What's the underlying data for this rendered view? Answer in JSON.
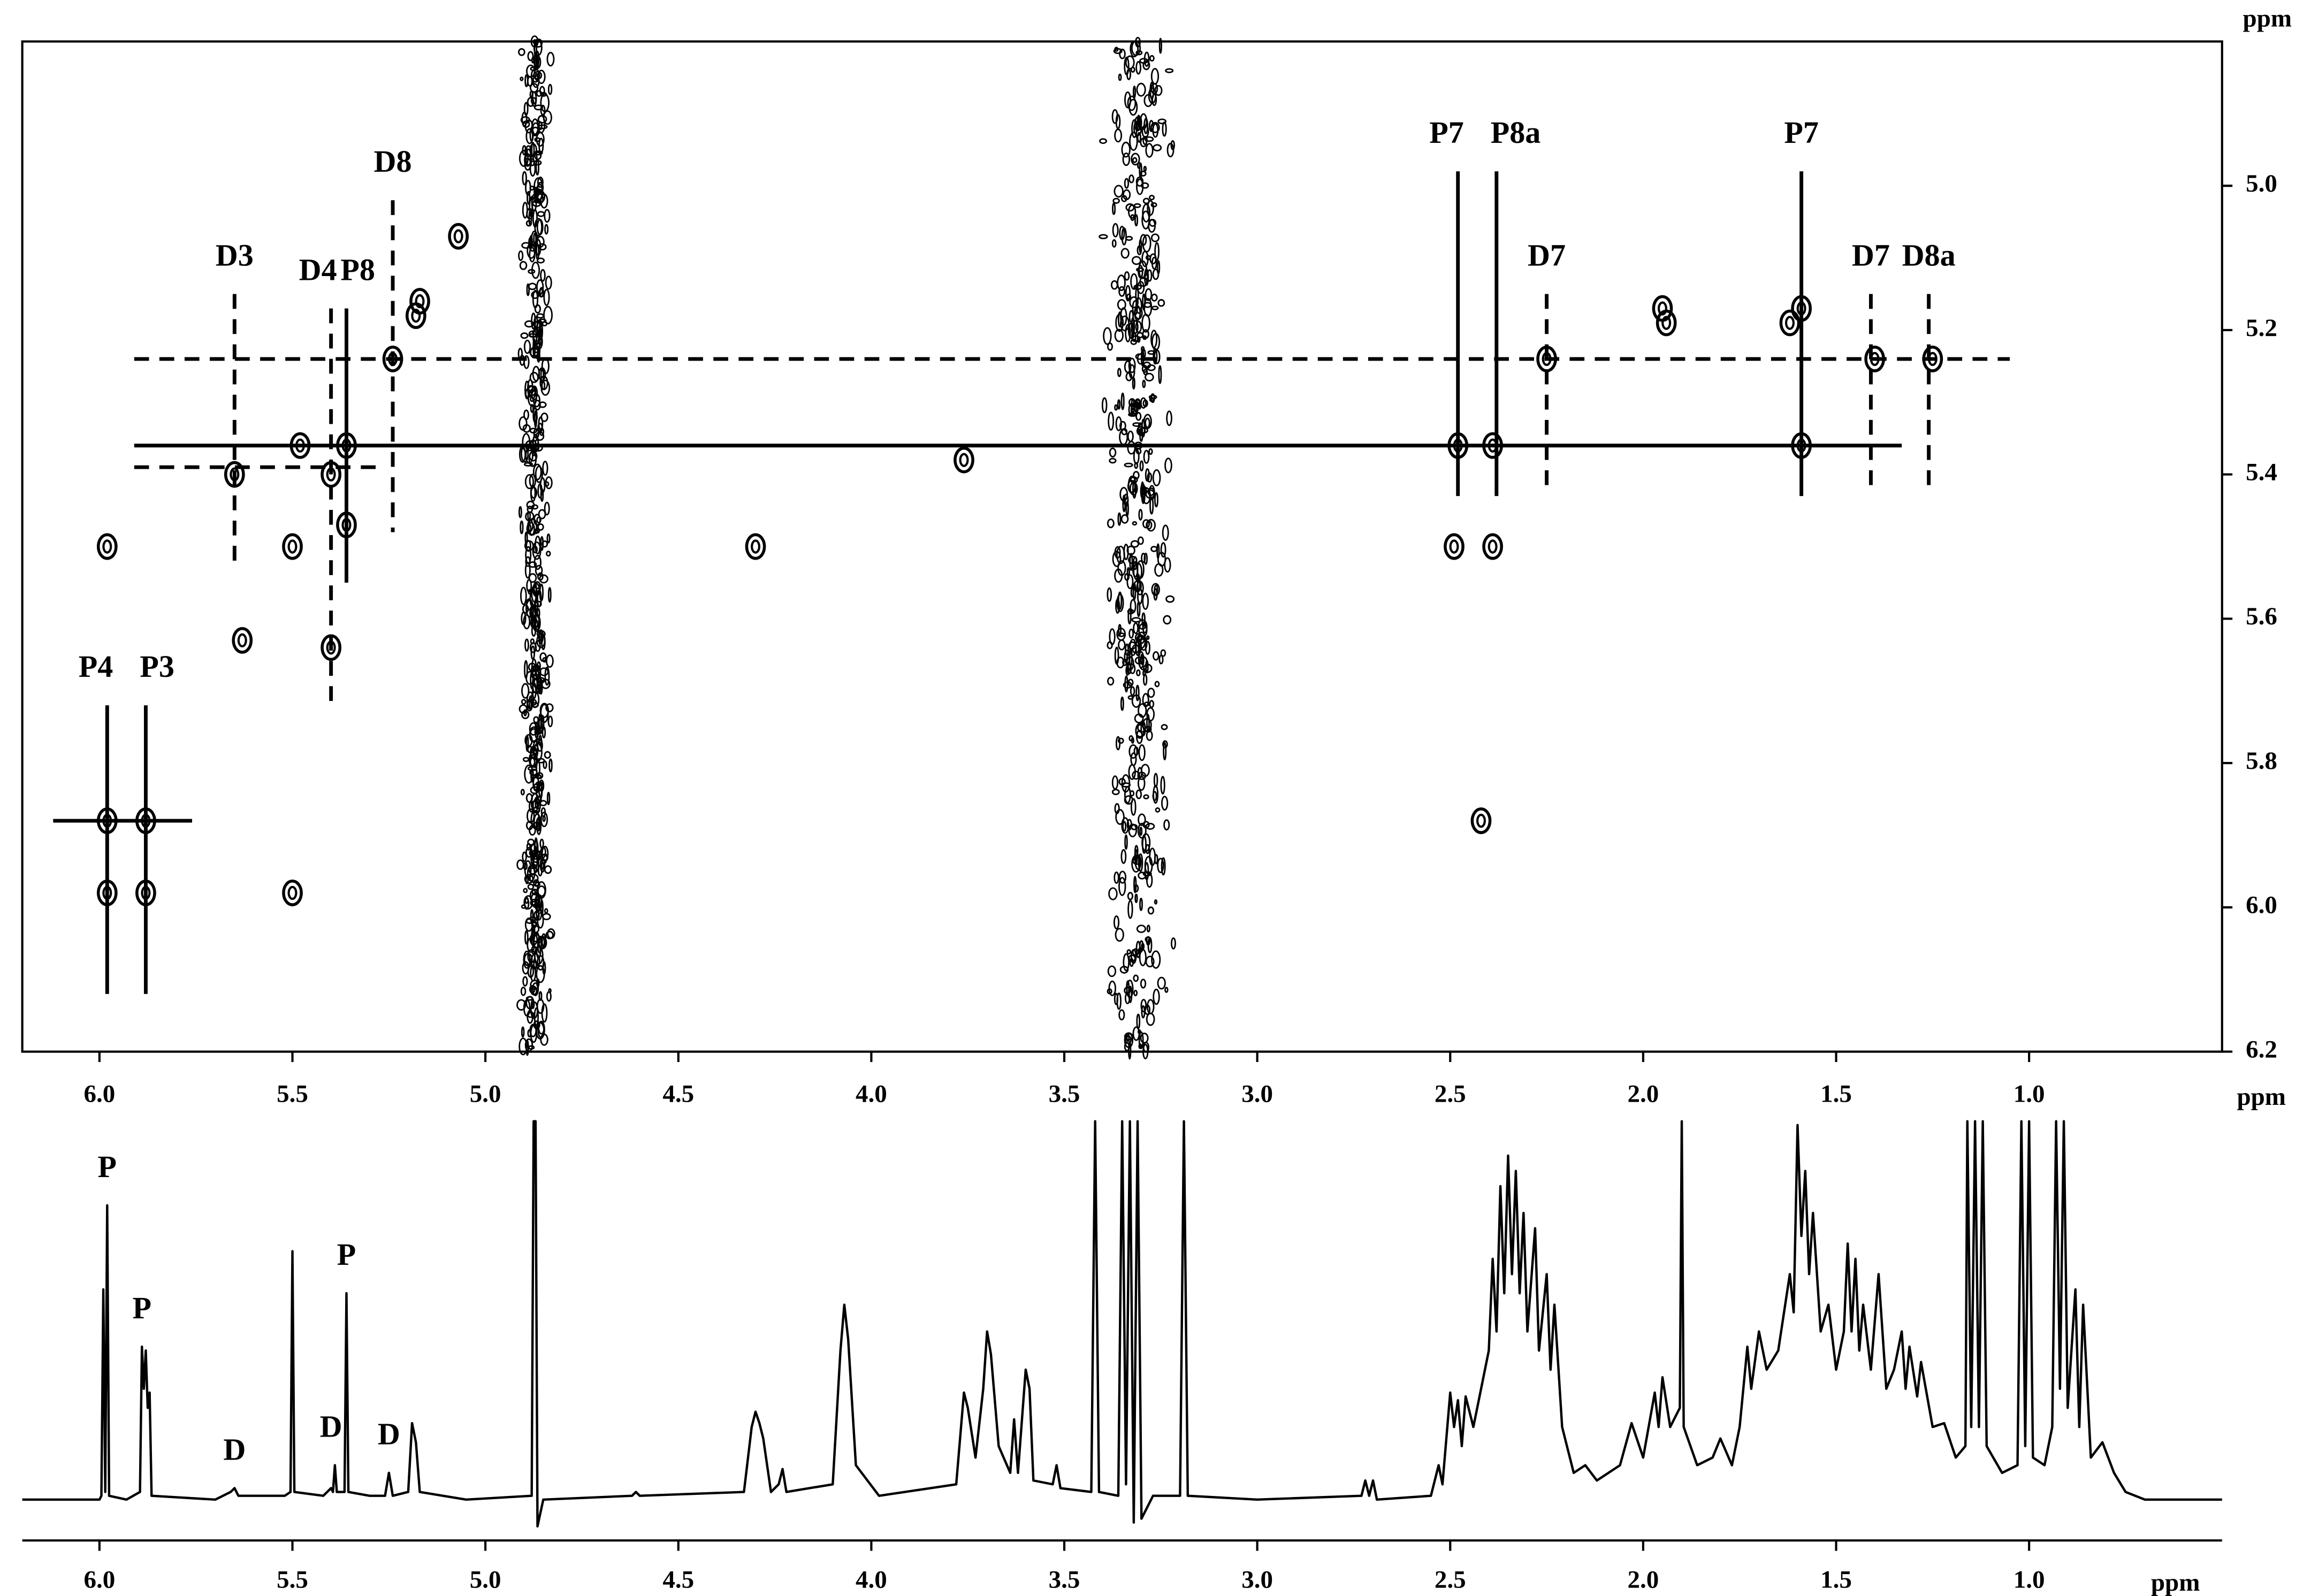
{
  "chart_data": [
    {
      "type": "contour",
      "xlabel": "ppm",
      "ylabel": "ppm",
      "xlim": [
        6.2,
        0.5
      ],
      "ylim": [
        4.8,
        6.2
      ],
      "xticks": [
        {
          "value": 6,
          "label": "6.0"
        },
        5.5,
        {
          "value": 5,
          "label": "5.0"
        },
        4.5,
        {
          "value": 4,
          "label": "4.0"
        },
        3.5,
        {
          "value": 3,
          "label": "3.0"
        },
        2.5,
        {
          "value": 2,
          "label": "2.0"
        },
        1.5,
        {
          "value": 1,
          "label": "1.0"
        }
      ],
      "yticks": [
        {
          "value": 5,
          "label": "5.0"
        },
        5.2,
        5.4,
        5.6,
        5.8,
        {
          "value": 6,
          "label": "6.0"
        },
        6.2
      ],
      "color": "#000000",
      "cross_peaks": {
        "x": [
          5.98,
          5.88,
          5.98,
          5.88,
          5.98,
          5.5,
          5.5,
          5.4,
          5.36,
          5.65,
          5.4,
          5.36,
          5.48,
          5.24,
          5.18,
          5.17,
          5.07,
          5.63,
          3.76,
          4.3,
          2.48,
          2.39,
          2.39,
          2.42,
          1.95,
          1.94,
          1.59,
          1.62,
          1.59,
          2.25,
          1.4,
          1.25,
          2.49
        ],
        "y": [
          5.88,
          5.88,
          5.98,
          5.98,
          5.5,
          5.98,
          5.5,
          5.4,
          5.36,
          5.4,
          5.64,
          5.47,
          5.36,
          5.24,
          5.18,
          5.16,
          5.07,
          5.63,
          5.38,
          5.5,
          5.36,
          5.36,
          5.5,
          5.88,
          5.17,
          5.19,
          5.17,
          5.19,
          5.36,
          5.24,
          5.24,
          5.24,
          5.5
        ]
      },
      "solvent_bands": [
        4.87,
        3.31
      ],
      "guides": [
        {
          "y": 5.36,
          "x1": 5.91,
          "x2": 1.33,
          "style": "solid"
        },
        {
          "y": 5.24,
          "x1": 5.91,
          "x2": 1.05,
          "style": "dashed"
        },
        {
          "y": 5.39,
          "x1": 5.91,
          "x2": 5.27,
          "style": "dashed"
        },
        {
          "y": 5.88,
          "x1": 6.12,
          "x2": 5.76,
          "style": "solid"
        }
      ],
      "annotations": [
        {
          "label": "P7",
          "x": 2.48,
          "y1": 4.98,
          "y2": 5.43,
          "style": "solid"
        },
        {
          "label": "P8a",
          "x": 2.38,
          "y1": 4.98,
          "y2": 5.43,
          "style": "solid"
        },
        {
          "label": "D7",
          "x": 2.25,
          "y1": 5.15,
          "y2": 5.42,
          "style": "dashed"
        },
        {
          "label": "P7",
          "x": 1.59,
          "y1": 4.98,
          "y2": 5.43,
          "style": "solid"
        },
        {
          "label": "D7",
          "x": 1.41,
          "y1": 5.15,
          "y2": 5.42,
          "style": "dashed"
        },
        {
          "label": "D8a",
          "x": 1.26,
          "y1": 5.15,
          "y2": 5.42,
          "style": "dashed"
        },
        {
          "label": "D8",
          "x": 5.24,
          "y1": 5.02,
          "y2": 5.48,
          "style": "dashed"
        },
        {
          "label": "D3",
          "x": 5.65,
          "y1": 5.15,
          "y2": 5.53,
          "style": "dashed"
        },
        {
          "label": "D4",
          "x": 5.4,
          "y1": 5.17,
          "y2": 5.72,
          "style": "dashed"
        },
        {
          "label": "P8",
          "x": 5.36,
          "y1": 5.17,
          "y2": 5.55,
          "style": "solid"
        },
        {
          "label": "P4",
          "x": 5.98,
          "y1": 5.72,
          "y2": 6.12,
          "style": "solid"
        },
        {
          "label": "P3",
          "x": 5.88,
          "y1": 5.72,
          "y2": 6.12,
          "style": "solid"
        }
      ]
    },
    {
      "type": "line",
      "xlabel": "ppm",
      "xlim": [
        6.2,
        0.5
      ],
      "ylim": [
        0,
        100
      ],
      "xticks": [
        {
          "value": 6,
          "label": "6.0"
        },
        5.5,
        {
          "value": 5,
          "label": "5.0"
        },
        4.5,
        {
          "value": 4,
          "label": "4.0"
        },
        3.5,
        {
          "value": 3,
          "label": "3.0"
        },
        2.5,
        {
          "value": 2,
          "label": "2.0"
        },
        1.5,
        {
          "value": 1,
          "label": "1.0"
        }
      ],
      "color": "#000000",
      "x": [
        6.2,
        6,
        5.995,
        5.99,
        5.985,
        5.98,
        5.975,
        5.93,
        5.895,
        5.89,
        5.885,
        5.88,
        5.875,
        5.87,
        5.865,
        5.7,
        5.66,
        5.65,
        5.64,
        5.52,
        5.505,
        5.5,
        5.495,
        5.42,
        5.4,
        5.395,
        5.39,
        5.385,
        5.365,
        5.36,
        5.355,
        5.3,
        5.26,
        5.25,
        5.24,
        5.2,
        5.19,
        5.18,
        5.17,
        5.05,
        4.88,
        4.875,
        4.87,
        4.865,
        4.85,
        4.62,
        4.61,
        4.6,
        4.33,
        4.31,
        4.3,
        4.29,
        4.28,
        4.26,
        4.24,
        4.23,
        4.22,
        4.1,
        4.08,
        4.07,
        4.06,
        4.04,
        3.98,
        3.78,
        3.76,
        3.75,
        3.73,
        3.71,
        3.7,
        3.69,
        3.67,
        3.64,
        3.63,
        3.62,
        3.6,
        3.59,
        3.58,
        3.53,
        3.52,
        3.51,
        3.43,
        3.42,
        3.41,
        3.36,
        3.35,
        3.34,
        3.33,
        3.32,
        3.31,
        3.3,
        3.27,
        3.2,
        3.19,
        3.18,
        3,
        2.73,
        2.72,
        2.71,
        2.7,
        2.69,
        2.55,
        2.53,
        2.52,
        2.5,
        2.49,
        2.48,
        2.47,
        2.46,
        2.44,
        2.42,
        2.4,
        2.39,
        2.38,
        2.37,
        2.36,
        2.35,
        2.34,
        2.33,
        2.32,
        2.31,
        2.3,
        2.28,
        2.27,
        2.25,
        2.24,
        2.23,
        2.21,
        2.18,
        2.15,
        2.12,
        2.06,
        2.03,
        2,
        1.97,
        1.96,
        1.95,
        1.93,
        1.905,
        1.9,
        1.895,
        1.86,
        1.82,
        1.8,
        1.77,
        1.75,
        1.73,
        1.72,
        1.7,
        1.68,
        1.65,
        1.62,
        1.61,
        1.6,
        1.59,
        1.58,
        1.57,
        1.56,
        1.54,
        1.52,
        1.5,
        1.48,
        1.47,
        1.46,
        1.45,
        1.44,
        1.43,
        1.41,
        1.39,
        1.37,
        1.35,
        1.33,
        1.32,
        1.31,
        1.29,
        1.28,
        1.25,
        1.22,
        1.19,
        1.165,
        1.16,
        1.15,
        1.14,
        1.13,
        1.12,
        1.11,
        1.07,
        1.03,
        1.02,
        1.01,
        1,
        0.99,
        0.96,
        0.94,
        0.93,
        0.92,
        0.91,
        0.9,
        0.88,
        0.87,
        0.86,
        0.84,
        0.81,
        0.78,
        0.75,
        0.7,
        0.6,
        0.5
      ],
      "values": [
        1,
        1,
        2,
        56,
        3,
        78,
        2,
        1,
        3,
        41,
        30,
        40,
        25,
        29,
        2,
        1,
        3,
        4,
        2,
        2,
        3,
        66,
        3,
        2,
        4,
        3,
        10,
        3,
        3,
        55,
        3,
        2,
        2,
        8,
        2,
        3,
        21,
        16,
        3,
        1,
        2,
        100,
        100,
        -6,
        1,
        2,
        3,
        2,
        3,
        20,
        24,
        21,
        17,
        3,
        5,
        9,
        3,
        5,
        40,
        52,
        43,
        10,
        2,
        5,
        29,
        25,
        12,
        30,
        45,
        39,
        15,
        8,
        22,
        8,
        35,
        30,
        6,
        5,
        10,
        4,
        3,
        100,
        3,
        2,
        100,
        5,
        100,
        -5,
        100,
        -4,
        2,
        2,
        100,
        2,
        1,
        2,
        6,
        2,
        6,
        1,
        2,
        10,
        5,
        29,
        20,
        27,
        15,
        28,
        20,
        30,
        40,
        64,
        45,
        83,
        55,
        91,
        60,
        87,
        55,
        76,
        45,
        72,
        40,
        60,
        35,
        52,
        20,
        8,
        10,
        6,
        10,
        21,
        12,
        29,
        20,
        33,
        20,
        25,
        100,
        20,
        10,
        12,
        17,
        10,
        20,
        41,
        30,
        45,
        35,
        40,
        60,
        50,
        99,
        70,
        87,
        60,
        76,
        45,
        52,
        35,
        45,
        68,
        45,
        64,
        40,
        52,
        35,
        60,
        30,
        35,
        45,
        30,
        41,
        28,
        37,
        20,
        21,
        12,
        15,
        100,
        20,
        100,
        20,
        100,
        15,
        8,
        10,
        100,
        15,
        100,
        12,
        10,
        20,
        100,
        30,
        100,
        25,
        56,
        20,
        52,
        12,
        16,
        8,
        3,
        1,
        1,
        1
      ],
      "peak_labels": [
        {
          "label": "P",
          "x": 5.98
        },
        {
          "label": "P",
          "x": 5.89
        },
        {
          "label": "D",
          "x": 5.65
        },
        {
          "label": "D",
          "x": 5.4
        },
        {
          "label": "P",
          "x": 5.36
        },
        {
          "label": "D",
          "x": 5.25
        }
      ]
    }
  ]
}
